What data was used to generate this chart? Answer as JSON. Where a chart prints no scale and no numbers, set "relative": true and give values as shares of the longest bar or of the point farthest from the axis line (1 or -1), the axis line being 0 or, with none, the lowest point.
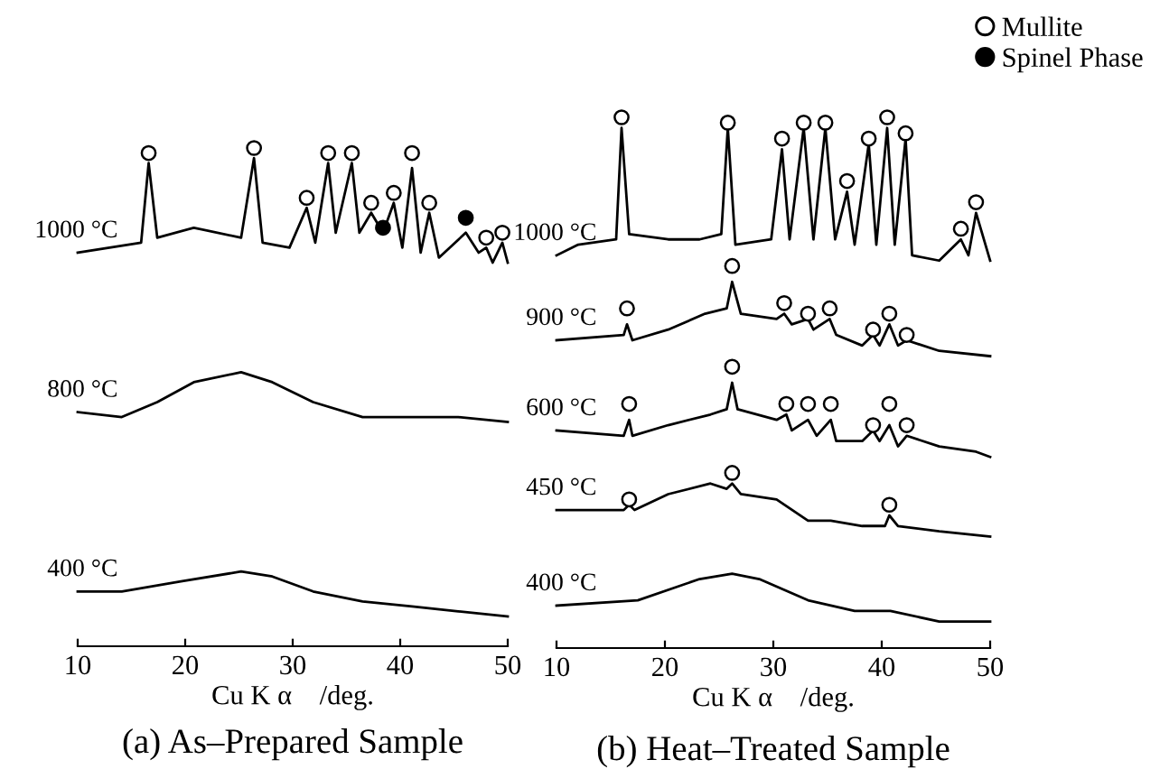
{
  "chart_data": [
    {
      "type": "line",
      "relative": true,
      "title": "(a) As–Prepared Sample",
      "xlabel": "Cu K α    /deg.",
      "xlim": [
        10,
        50
      ],
      "xticks": [
        10,
        20,
        30,
        40,
        50
      ],
      "grid": false,
      "legend": "top right",
      "tick_labels": "x",
      "series": [
        {
          "name": "1000 °C",
          "color": "#000000",
          "x": [
            10,
            15.9,
            16.6,
            17.4,
            20.8,
            25.2,
            26.4,
            27.2,
            29.7,
            31.3,
            32.1,
            33.3,
            34.0,
            35.5,
            36.2,
            37.3,
            38.4,
            39.4,
            40.2,
            41.1,
            41.9,
            42.7,
            43.6,
            46.1,
            47.3,
            48.0,
            48.6,
            49.5,
            50
          ],
          "values": [
            0.79,
            0.81,
            0.97,
            0.82,
            0.84,
            0.82,
            0.98,
            0.81,
            0.8,
            0.88,
            0.81,
            0.97,
            0.83,
            0.97,
            0.83,
            0.87,
            0.83,
            0.89,
            0.8,
            0.96,
            0.79,
            0.87,
            0.78,
            0.83,
            0.79,
            0.8,
            0.77,
            0.81,
            0.77
          ]
        },
        {
          "name": "800 °C",
          "color": "#000000",
          "x": [
            10,
            14.1,
            17.4,
            20.8,
            25.2,
            28.1,
            31.9,
            36.5,
            41.1,
            45.4,
            50
          ],
          "values": [
            0.47,
            0.46,
            0.49,
            0.53,
            0.55,
            0.53,
            0.49,
            0.46,
            0.46,
            0.46,
            0.45
          ]
        },
        {
          "name": "400 °C",
          "color": "#000000",
          "x": [
            10,
            14.1,
            19.6,
            25.2,
            28.1,
            31.9,
            36.5,
            41.1,
            45.4,
            50
          ],
          "values": [
            0.11,
            0.11,
            0.13,
            0.15,
            0.14,
            0.11,
            0.09,
            0.08,
            0.07,
            0.06
          ]
        },
        {
          "type": "scatter",
          "name": "Mullite",
          "color": "#ffffff",
          "marker": "circle",
          "x": [
            16.6,
            26.4,
            31.3,
            33.3,
            35.5,
            37.3,
            39.4,
            41.1,
            42.7,
            48.0,
            49.5
          ],
          "values": [
            0.99,
            1.0,
            0.9,
            0.99,
            0.99,
            0.89,
            0.91,
            0.99,
            0.89,
            0.82,
            0.83
          ]
        },
        {
          "type": "scatter",
          "name": "Spinel Phase",
          "color": "#000000",
          "marker": "circle",
          "x": [
            38.4,
            46.1
          ],
          "values": [
            0.84,
            0.86
          ]
        }
      ]
    },
    {
      "type": "line",
      "relative": true,
      "title": "(b) Heat–Treated Sample",
      "xlabel": "Cu K α    /deg.",
      "xlim": [
        10,
        50
      ],
      "xticks": [
        10,
        20,
        30,
        40,
        50
      ],
      "grid": false,
      "tick_labels": "x",
      "series": [
        {
          "name": "1000 °C",
          "color": "#000000",
          "x": [
            10,
            12,
            15.5,
            16.0,
            16.7,
            20.3,
            23.2,
            25.2,
            25.8,
            26.5,
            29.8,
            30.8,
            31.5,
            32.8,
            33.7,
            34.8,
            35.7,
            36.8,
            37.5,
            38.8,
            39.5,
            40.5,
            41.2,
            42.2,
            42.8,
            45.3,
            47.3,
            48.0,
            48.7,
            50
          ],
          "values": [
            0.74,
            0.76,
            0.77,
            0.98,
            0.78,
            0.77,
            0.77,
            0.78,
            0.98,
            0.76,
            0.77,
            0.94,
            0.77,
            0.98,
            0.77,
            0.98,
            0.77,
            0.86,
            0.76,
            0.95,
            0.76,
            0.98,
            0.76,
            0.96,
            0.74,
            0.73,
            0.77,
            0.74,
            0.82,
            0.73
          ]
        },
        {
          "name": "900 °C",
          "color": "#000000",
          "x": [
            10,
            16.2,
            16.5,
            17,
            20.3,
            23.7,
            25.7,
            26.2,
            27,
            30.3,
            31,
            31.7,
            33.2,
            33.7,
            35.2,
            35.8,
            38.2,
            39.2,
            39.8,
            40.7,
            41.5,
            42.3,
            45.3,
            50
          ],
          "values": [
            0.58,
            0.59,
            0.61,
            0.58,
            0.6,
            0.63,
            0.64,
            0.69,
            0.63,
            0.62,
            0.63,
            0.61,
            0.62,
            0.6,
            0.62,
            0.59,
            0.57,
            0.59,
            0.57,
            0.61,
            0.57,
            0.58,
            0.56,
            0.55
          ]
        },
        {
          "name": "600 °C",
          "color": "#000000",
          "x": [
            10,
            16.2,
            16.7,
            17,
            20.3,
            24.2,
            25.7,
            26.2,
            26.7,
            30.3,
            31.2,
            31.7,
            33.2,
            34,
            35.3,
            35.8,
            38.2,
            39.2,
            39.8,
            40.7,
            41.5,
            42.3,
            45.3,
            48.7,
            50
          ],
          "values": [
            0.41,
            0.4,
            0.43,
            0.4,
            0.42,
            0.44,
            0.45,
            0.5,
            0.45,
            0.43,
            0.44,
            0.41,
            0.43,
            0.4,
            0.43,
            0.39,
            0.39,
            0.41,
            0.39,
            0.42,
            0.38,
            0.4,
            0.38,
            0.37,
            0.36
          ]
        },
        {
          "name": "450 °C",
          "color": "#000000",
          "x": [
            10,
            16.2,
            16.7,
            17.2,
            20.3,
            24.2,
            25.7,
            26.2,
            27,
            30.3,
            33.2,
            35.3,
            38.2,
            40.3,
            40.7,
            41.5,
            45.3,
            50
          ],
          "values": [
            0.26,
            0.26,
            0.27,
            0.26,
            0.29,
            0.31,
            0.3,
            0.31,
            0.29,
            0.28,
            0.24,
            0.24,
            0.23,
            0.23,
            0.25,
            0.23,
            0.22,
            0.21
          ]
        },
        {
          "name": "400 °C",
          "color": "#000000",
          "x": [
            10,
            17.5,
            23.2,
            26.2,
            28.7,
            33.2,
            37.5,
            40.8,
            45.3,
            50
          ],
          "values": [
            0.08,
            0.09,
            0.13,
            0.14,
            0.13,
            0.09,
            0.07,
            0.07,
            0.05,
            0.05
          ]
        },
        {
          "type": "scatter",
          "color": "#ffffff",
          "marker": "circle",
          "x": [
            16.0,
            25.8,
            30.8,
            32.8,
            34.8,
            36.8,
            38.8,
            40.5,
            42.2,
            47.3,
            48.7
          ],
          "values": [
            1.0,
            0.99,
            0.96,
            0.99,
            0.99,
            0.88,
            0.96,
            1.0,
            0.97,
            0.79,
            0.84
          ]
        },
        {
          "type": "scatter",
          "color": "#ffffff",
          "marker": "circle",
          "x": [
            16.5,
            26.2,
            31.0,
            33.2,
            35.2,
            39.2,
            40.7,
            42.3
          ],
          "values": [
            0.64,
            0.72,
            0.65,
            0.63,
            0.64,
            0.6,
            0.63,
            0.59
          ]
        },
        {
          "type": "scatter",
          "color": "#ffffff",
          "marker": "circle",
          "x": [
            16.7,
            26.2,
            31.2,
            33.2,
            35.3,
            39.2,
            40.7,
            42.3
          ],
          "values": [
            0.46,
            0.53,
            0.46,
            0.46,
            0.46,
            0.42,
            0.46,
            0.42
          ]
        },
        {
          "type": "scatter",
          "color": "#ffffff",
          "marker": "circle",
          "x": [
            16.7,
            26.2,
            40.7
          ],
          "values": [
            0.28,
            0.33,
            0.27
          ]
        }
      ]
    }
  ]
}
